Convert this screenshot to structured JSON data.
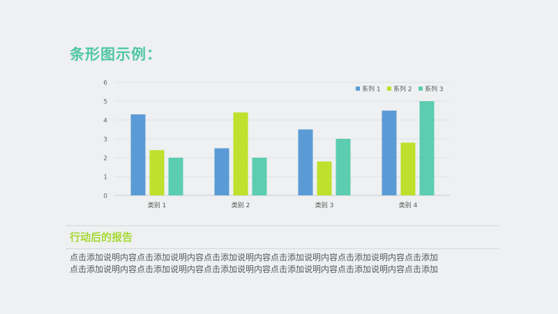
{
  "title": "条形图示例：",
  "section_heading": "行动后的报告",
  "body_lines": [
    "点击添加说明内容点击添加说明内容点击添加说明内容点击添加说明内容点击添加说明内容点击添加",
    "点击添加说明内容点击添加说明内容点击添加说明内容点击添加说明内容点击添加说明内容点击添加"
  ],
  "colors": {
    "title": "#4fc7a0",
    "heading": "#a6d934",
    "series": [
      "#5b9bd5",
      "#bfe02c",
      "#5ccdb0"
    ]
  },
  "chart_data": {
    "type": "bar",
    "categories": [
      "类别 1",
      "类别 2",
      "类别 3",
      "类别 4"
    ],
    "series": [
      {
        "name": "系列 1",
        "values": [
          4.3,
          2.5,
          3.5,
          4.5
        ]
      },
      {
        "name": "系列 2",
        "values": [
          2.4,
          4.4,
          1.8,
          2.8
        ]
      },
      {
        "name": "系列 3",
        "values": [
          2.0,
          2.0,
          3.0,
          5.0
        ]
      }
    ],
    "ylim": [
      0,
      6
    ],
    "yticks": [
      0,
      1,
      2,
      3,
      4,
      5,
      6
    ],
    "grid": true,
    "legend_position": "top-right"
  }
}
